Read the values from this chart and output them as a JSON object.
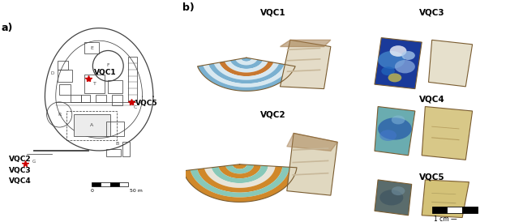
{
  "fig_width": 6.45,
  "fig_height": 2.74,
  "dpi": 100,
  "bg_color": "#ffffff",
  "panel_a_label": "a)",
  "panel_b_label": "b)",
  "star_color": "#cc0000",
  "map_line_color": "#444444",
  "scale_bar_map_label_0": "0",
  "scale_bar_map_label_50": "50 m",
  "scale_bar_photo_text": "1 cm —",
  "vqc1_label": "VQC1",
  "vqc2_label": "VQC2",
  "vqc3_label": "VQC3",
  "vqc4_label": "VQC4",
  "vqc5_label": "VQC5",
  "tile_edge_color": "#7a5c30",
  "tile_mortar_color": "#c8b89a",
  "vqc1_stripe_colors": [
    "#7ab0d0",
    "#d8e8f0",
    "#7ab0d0",
    "#d8e8f0",
    "#c87830",
    "#d8e8f0",
    "#7ab0d0",
    "#d8e8f0",
    "#7ab0d0"
  ],
  "vqc2_stripe_colors": [
    "#d0882a",
    "#88c8b8",
    "#d0882a",
    "#88c8b8",
    "#e8e4d8",
    "#d0882a",
    "#88c8b8",
    "#d0882a"
  ],
  "vqc3_face_color": "#2244aa",
  "vqc3_back_color": "#e8e2d0",
  "vqc4_face_color": "#5898a8",
  "vqc4_back_color": "#d8c890",
  "vqc5_face_color": "#607070",
  "vqc5_back_color": "#d0c080"
}
